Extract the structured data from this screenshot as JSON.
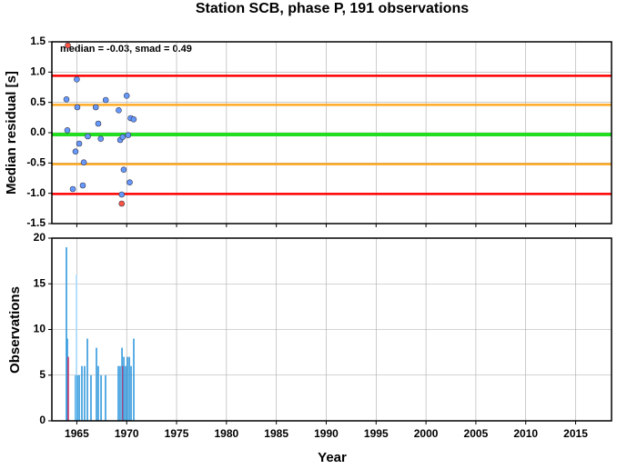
{
  "chart_data": [
    {
      "type": "scatter",
      "title": "Station SCB, phase P, 191 observations",
      "annotation": "median = -0.03, smad = 0.49",
      "y_label": "Median residual [s]",
      "series": [
        {
          "color": "#6699ff",
          "x": [
            1963.96,
            1964.05,
            1964.6,
            1965.0,
            1965.05,
            1964.87,
            1965.24,
            1965.6,
            1965.7,
            1966.1,
            1966.9,
            1967.15,
            1967.4,
            1967.9,
            1969.2,
            1969.35,
            1969.6,
            1969.5,
            1969.7,
            1970.0,
            1970.15,
            1970.4,
            1970.7,
            1970.3
          ],
          "values": [
            0.55,
            0.04,
            -0.93,
            0.88,
            0.42,
            -0.31,
            -0.18,
            -0.87,
            -0.49,
            -0.06,
            0.42,
            0.15,
            -0.1,
            0.54,
            0.37,
            -0.12,
            -0.07,
            -1.02,
            -0.61,
            0.61,
            -0.04,
            0.24,
            0.22,
            -0.82
          ]
        },
        {
          "color": "#ff5544",
          "x": [
            1964.1,
            1969.5
          ],
          "values": [
            1.44,
            -1.17
          ]
        }
      ],
      "hlines": [
        {
          "value": 0.94,
          "color": "#ff0000"
        },
        {
          "value": 0.46,
          "color": "#ffaa22"
        },
        {
          "value": -0.03,
          "color": "#22dd22"
        },
        {
          "value": -0.52,
          "color": "#ffaa22"
        },
        {
          "value": -1.01,
          "color": "#ff0000"
        }
      ],
      "xlim": [
        1962.5,
        2018.6
      ],
      "xticks": [
        1965,
        1970,
        1975,
        1980,
        1985,
        1990,
        1995,
        2000,
        2005,
        2010,
        2015
      ],
      "ylim": [
        -1.5,
        1.5
      ],
      "yticks": [
        1.5,
        {
          "value": 1.0,
          "label": "1.0"
        },
        0.5,
        {
          "value": 0.0,
          "label": "0.0"
        },
        -0.5,
        {
          "value": -1.0,
          "label": "-1.0"
        },
        -1.5
      ],
      "grid": true
    },
    {
      "type": "bar",
      "x_label": "Year",
      "y_label": "Observations",
      "x": [
        1963.96,
        1964.05,
        1964.14,
        1964.87,
        1964.96,
        1965.05,
        1965.24,
        1965.51,
        1965.78,
        1966.06,
        1966.42,
        1966.97,
        1967.15,
        1967.43,
        1967.88,
        1969.16,
        1969.34,
        1969.53,
        1969.62,
        1969.71,
        1969.89,
        1970.07,
        1970.26,
        1970.44,
        1970.71
      ],
      "values": [
        19,
        9,
        7,
        5,
        16,
        5,
        5,
        6,
        6,
        9,
        5,
        8,
        6,
        5,
        5,
        6,
        6,
        8,
        6,
        7,
        6,
        7,
        7,
        6,
        9
      ],
      "colors": [
        "#3399dd",
        "#3399dd",
        "#cc3366",
        "#3399dd",
        "#aaddff",
        "#3399dd",
        "#3399dd",
        "#3399dd",
        "#3399dd",
        "#3399dd",
        "#3399dd",
        "#3399dd",
        "#3399dd",
        "#3399dd",
        "#3399dd",
        "#3399dd",
        "#3399dd",
        "#3399dd",
        "#cc3366",
        "#3399dd",
        "#3399dd",
        "#3399dd",
        "#3399dd",
        "#3399dd",
        "#3399dd"
      ],
      "xlim": [
        1962.5,
        2018.6
      ],
      "xticks": [
        1965,
        1970,
        1975,
        1980,
        1985,
        1990,
        1995,
        2000,
        2005,
        2010,
        2015
      ],
      "ylim": [
        0,
        20
      ],
      "yticks": [
        0,
        5,
        10,
        15,
        20
      ],
      "grid": true
    }
  ]
}
